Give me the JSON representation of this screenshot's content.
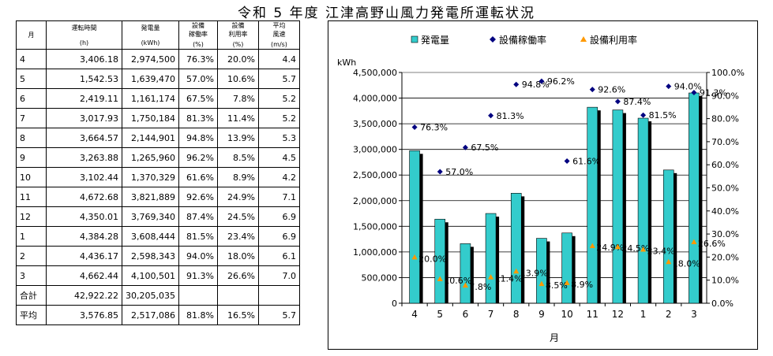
{
  "title": "令和 5 年度 江津高野山風力発電所運転状況",
  "table": {
    "header": {
      "month": "月",
      "hours": "運転時間",
      "hours_unit": "(h)",
      "energy": "発電量",
      "energy_unit": "(kWh)",
      "avail": "設備\n稼働率",
      "avail_unit": "(%)",
      "util": "設備\n利用率",
      "util_unit": "(%)",
      "wind": "平均\n風速",
      "wind_unit": "(m/s)"
    },
    "rows": [
      {
        "m": "4",
        "hours": "3,406.18",
        "energy": "2,974,500",
        "avail": "76.3%",
        "util": "20.0%",
        "wind": "4.4"
      },
      {
        "m": "5",
        "hours": "1,542.53",
        "energy": "1,639,470",
        "avail": "57.0%",
        "util": "10.6%",
        "wind": "5.7"
      },
      {
        "m": "6",
        "hours": "2,419.11",
        "energy": "1,161,174",
        "avail": "67.5%",
        "util": "7.8%",
        "wind": "5.2"
      },
      {
        "m": "7",
        "hours": "3,017.93",
        "energy": "1,750,184",
        "avail": "81.3%",
        "util": "11.4%",
        "wind": "5.2"
      },
      {
        "m": "8",
        "hours": "3,664.57",
        "energy": "2,144,901",
        "avail": "94.8%",
        "util": "13.9%",
        "wind": "5.3"
      },
      {
        "m": "9",
        "hours": "3,263.88",
        "energy": "1,265,960",
        "avail": "96.2%",
        "util": "8.5%",
        "wind": "4.5"
      },
      {
        "m": "10",
        "hours": "3,102.44",
        "energy": "1,370,329",
        "avail": "61.6%",
        "util": "8.9%",
        "wind": "4.2"
      },
      {
        "m": "11",
        "hours": "4,672.68",
        "energy": "3,821,889",
        "avail": "92.6%",
        "util": "24.9%",
        "wind": "7.1"
      },
      {
        "m": "12",
        "hours": "4,350.01",
        "energy": "3,769,340",
        "avail": "87.4%",
        "util": "24.5%",
        "wind": "6.9"
      },
      {
        "m": "1",
        "hours": "4,384.28",
        "energy": "3,608,444",
        "avail": "81.5%",
        "util": "23.4%",
        "wind": "6.9"
      },
      {
        "m": "2",
        "hours": "4,436.17",
        "energy": "2,598,343",
        "avail": "94.0%",
        "util": "18.0%",
        "wind": "6.1"
      },
      {
        "m": "3",
        "hours": "4,662.44",
        "energy": "4,100,501",
        "avail": "91.3%",
        "util": "26.6%",
        "wind": "7.0"
      }
    ],
    "total": {
      "m": "合計",
      "hours": "42,922.22",
      "energy": "30,205,035",
      "avail": "",
      "util": "",
      "wind": ""
    },
    "average": {
      "m": "平均",
      "hours": "3,576.85",
      "energy": "2,517,086",
      "avail": "81.8%",
      "util": "16.5%",
      "wind": "5.7"
    }
  },
  "chart_data": {
    "type": "bar",
    "categories": [
      "4",
      "5",
      "6",
      "7",
      "8",
      "9",
      "10",
      "11",
      "12",
      "1",
      "2",
      "3"
    ],
    "xlabel": "月",
    "ylabel": "kWh",
    "ylim": [
      0,
      4500000
    ],
    "y_ticks": [
      "0",
      "500,000",
      "1,000,000",
      "1,500,000",
      "2,000,000",
      "2,500,000",
      "3,000,000",
      "3,500,000",
      "4,000,000",
      "4,500,000"
    ],
    "y2lim": [
      0,
      100
    ],
    "y2_ticks": [
      "0.0%",
      "10.0%",
      "20.0%",
      "30.0%",
      "40.0%",
      "50.0%",
      "60.0%",
      "70.0%",
      "80.0%",
      "90.0%",
      "100.0%"
    ],
    "legend_position": "top",
    "series": [
      {
        "name": "発電量",
        "type": "bar",
        "axis": "left",
        "color": "#33cccc",
        "values": [
          2974500,
          1639470,
          1161174,
          1750184,
          2144901,
          1265960,
          1370329,
          3821889,
          3769340,
          3608444,
          2598343,
          4100501
        ]
      },
      {
        "name": "設備稼働率",
        "type": "scatter",
        "axis": "right",
        "marker": "diamond",
        "color": "#000080",
        "values": [
          76.3,
          57.0,
          67.5,
          81.3,
          94.8,
          96.2,
          61.6,
          92.6,
          87.4,
          81.5,
          94.0,
          91.3
        ],
        "labels": [
          "76.3%",
          "57.0%",
          "67.5%",
          "81.3%",
          "94.8%",
          "96.2%",
          "61.6%",
          "92.6%",
          "87.4%",
          "81.5%",
          "94.0%",
          "91.3%"
        ]
      },
      {
        "name": "設備利用率",
        "type": "scatter",
        "axis": "right",
        "marker": "triangle",
        "color": "#ff9900",
        "values": [
          20.0,
          10.6,
          7.8,
          11.4,
          13.9,
          8.5,
          8.9,
          24.9,
          24.5,
          23.4,
          18.0,
          26.6
        ],
        "labels": [
          "20.0%",
          "10.6%",
          "7.8%",
          "11.4%",
          "13.9%",
          "8.5%",
          "8.9%",
          "24.9%",
          "24.5%",
          "23.4%",
          "18.0%",
          "26.6%"
        ]
      }
    ],
    "grid": true
  }
}
